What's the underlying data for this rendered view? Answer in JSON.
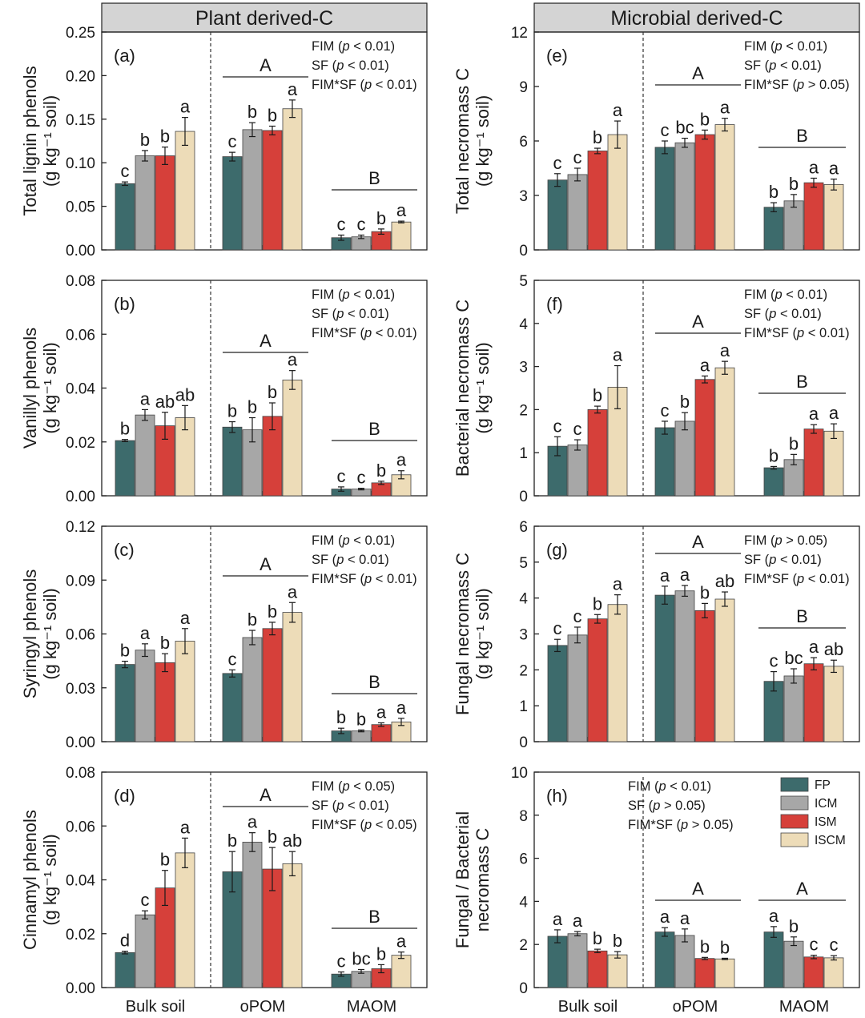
{
  "headers": {
    "left": "Plant derived-C",
    "right": "Microbial derived-C"
  },
  "legend": [
    {
      "name": "FP",
      "color": "#3d6b6c"
    },
    {
      "name": "ICM",
      "color": "#a7a7a7"
    },
    {
      "name": "ISM",
      "color": "#d6403a"
    },
    {
      "name": "ISCM",
      "color": "#eddcb8"
    }
  ],
  "chart_data": [
    {
      "id": "a",
      "type": "bar",
      "panel_label": "(a)",
      "ylabel": [
        "Total lignin phenols",
        "(g kg⁻¹ soil)"
      ],
      "ylim": [
        0,
        0.25
      ],
      "yticks": [
        "0.00",
        "0.05",
        "0.10",
        "0.15",
        "0.20",
        "0.25"
      ],
      "categories": [
        "Bulk soil",
        "oPOM",
        "MAOM"
      ],
      "series": [
        "FP",
        "ICM",
        "ISM",
        "ISCM"
      ],
      "values": [
        [
          0.076,
          0.108,
          0.108,
          0.136
        ],
        [
          0.107,
          0.138,
          0.137,
          0.162
        ],
        [
          0.014,
          0.015,
          0.021,
          0.032
        ]
      ],
      "errors": [
        [
          0.002,
          0.006,
          0.01,
          0.016
        ],
        [
          0.005,
          0.008,
          0.005,
          0.01
        ],
        [
          0.003,
          0.002,
          0.003,
          0.001
        ]
      ],
      "letters": [
        [
          "c",
          "b",
          "b",
          "a"
        ],
        [
          "c",
          "b",
          "b",
          "a"
        ],
        [
          "c",
          "c",
          "b",
          "a"
        ]
      ],
      "group_letters": [
        "",
        "A",
        "B"
      ],
      "stats": [
        [
          "FIM",
          " (",
          "p",
          " < 0.01)"
        ],
        [
          "SF",
          " (",
          "p",
          " < 0.01)"
        ],
        [
          "FIM*SF",
          " (",
          "p",
          " < 0.01)"
        ]
      ]
    },
    {
      "id": "b",
      "type": "bar",
      "panel_label": "(b)",
      "ylabel": [
        "Vanillyl phenols",
        "(g kg⁻¹ soil)"
      ],
      "ylim": [
        0,
        0.08
      ],
      "yticks": [
        "0.00",
        "0.02",
        "0.04",
        "0.06",
        "0.08"
      ],
      "categories": [
        "Bulk soil",
        "oPOM",
        "MAOM"
      ],
      "series": [
        "FP",
        "ICM",
        "ISM",
        "ISCM"
      ],
      "values": [
        [
          0.0205,
          0.03,
          0.026,
          0.029
        ],
        [
          0.0255,
          0.0245,
          0.0295,
          0.043
        ],
        [
          0.0025,
          0.0025,
          0.0048,
          0.0078
        ]
      ],
      "errors": [
        [
          0.0004,
          0.002,
          0.005,
          0.0045
        ],
        [
          0.002,
          0.0045,
          0.005,
          0.0035
        ],
        [
          0.0008,
          0.0003,
          0.0006,
          0.0015
        ]
      ],
      "letters": [
        [
          "b",
          "a",
          "ab",
          "ab"
        ],
        [
          "b",
          "b",
          "b",
          "a"
        ],
        [
          "c",
          "c",
          "b",
          "a"
        ]
      ],
      "group_letters": [
        "",
        "A",
        "B"
      ],
      "stats": [
        [
          "FIM",
          " (",
          "p",
          " < 0.01)"
        ],
        [
          "SF",
          " (",
          "p",
          " < 0.01)"
        ],
        [
          "FIM*SF",
          " (",
          "p",
          " < 0.01)"
        ]
      ]
    },
    {
      "id": "c",
      "type": "bar",
      "panel_label": "(c)",
      "ylabel": [
        "Syringyl phenols",
        "(g kg⁻¹ soil)"
      ],
      "ylim": [
        0,
        0.12
      ],
      "yticks": [
        "0.00",
        "0.03",
        "0.06",
        "0.09",
        "0.12"
      ],
      "categories": [
        "Bulk soil",
        "oPOM",
        "MAOM"
      ],
      "series": [
        "FP",
        "ICM",
        "ISM",
        "ISCM"
      ],
      "values": [
        [
          0.043,
          0.051,
          0.044,
          0.056
        ],
        [
          0.038,
          0.058,
          0.063,
          0.072
        ],
        [
          0.006,
          0.006,
          0.0095,
          0.011
        ]
      ],
      "errors": [
        [
          0.0018,
          0.0035,
          0.005,
          0.007
        ],
        [
          0.002,
          0.004,
          0.0035,
          0.0055
        ],
        [
          0.0015,
          0.0005,
          0.001,
          0.002
        ]
      ],
      "letters": [
        [
          "b",
          "a",
          "b",
          "a"
        ],
        [
          "c",
          "b",
          "b",
          "a"
        ],
        [
          "b",
          "b",
          "a",
          "a"
        ]
      ],
      "group_letters": [
        "",
        "A",
        "B"
      ],
      "stats": [
        [
          "FIM",
          " (",
          "p",
          " < 0.01)"
        ],
        [
          "SF",
          " (",
          "p",
          " < 0.01)"
        ],
        [
          "FIM*SF",
          " (",
          "p",
          " < 0.01)"
        ]
      ]
    },
    {
      "id": "d",
      "type": "bar",
      "panel_label": "(d)",
      "ylabel": [
        "Cinnamyl phenols",
        "(g kg⁻¹ soil)"
      ],
      "ylim": [
        0,
        0.08
      ],
      "yticks": [
        "0.00",
        "0.02",
        "0.04",
        "0.06",
        "0.08"
      ],
      "categories": [
        "Bulk soil",
        "oPOM",
        "MAOM"
      ],
      "series": [
        "FP",
        "ICM",
        "ISM",
        "ISCM"
      ],
      "values": [
        [
          0.013,
          0.027,
          0.037,
          0.05
        ],
        [
          0.043,
          0.054,
          0.044,
          0.046
        ],
        [
          0.005,
          0.006,
          0.007,
          0.012
        ]
      ],
      "errors": [
        [
          0.0005,
          0.0015,
          0.0065,
          0.0055
        ],
        [
          0.0075,
          0.0035,
          0.008,
          0.0045
        ],
        [
          0.0008,
          0.0007,
          0.0015,
          0.0012
        ]
      ],
      "letters": [
        [
          "d",
          "c",
          "b",
          "a"
        ],
        [
          "b",
          "a",
          "b",
          "ab"
        ],
        [
          "c",
          "bc",
          "b",
          "a"
        ]
      ],
      "group_letters": [
        "",
        "A",
        "B"
      ],
      "stats": [
        [
          "FIM",
          " (",
          "p",
          " < 0.05)"
        ],
        [
          "SF",
          " (",
          "p",
          " < 0.01)"
        ],
        [
          "FIM*SF",
          " (",
          "p",
          " < 0.05)"
        ]
      ]
    },
    {
      "id": "e",
      "type": "bar",
      "panel_label": "(e)",
      "ylabel": [
        "Total necromass C",
        "(g kg⁻¹ soil)"
      ],
      "ylim": [
        0,
        12
      ],
      "yticks": [
        "0",
        "3",
        "6",
        "9",
        "12"
      ],
      "categories": [
        "Bulk soil",
        "oPOM",
        "MAOM"
      ],
      "series": [
        "FP",
        "ICM",
        "ISM",
        "ISCM"
      ],
      "values": [
        [
          3.85,
          4.15,
          5.45,
          6.35
        ],
        [
          5.65,
          5.9,
          6.35,
          6.9
        ],
        [
          2.35,
          2.7,
          3.7,
          3.6
        ]
      ],
      "errors": [
        [
          0.35,
          0.35,
          0.15,
          0.75
        ],
        [
          0.35,
          0.25,
          0.25,
          0.35
        ],
        [
          0.25,
          0.35,
          0.25,
          0.3
        ]
      ],
      "letters": [
        [
          "c",
          "c",
          "b",
          "a"
        ],
        [
          "c",
          "bc",
          "b",
          "a"
        ],
        [
          "b",
          "b",
          "a",
          "a"
        ]
      ],
      "group_letters": [
        "",
        "A",
        "B"
      ],
      "stats": [
        [
          "FIM",
          " (",
          "p",
          " < 0.01)"
        ],
        [
          "SF",
          " (",
          "p",
          " < 0.01)"
        ],
        [
          "FIM*SF",
          " (",
          "p",
          " > 0.05)"
        ]
      ]
    },
    {
      "id": "f",
      "type": "bar",
      "panel_label": "(f)",
      "ylabel": [
        "Bacterial necromass C",
        "(g kg⁻¹ soil)"
      ],
      "ylim": [
        0,
        5
      ],
      "yticks": [
        "0",
        "1",
        "2",
        "3",
        "4",
        "5"
      ],
      "categories": [
        "Bulk soil",
        "oPOM",
        "MAOM"
      ],
      "series": [
        "FP",
        "ICM",
        "ISM",
        "ISCM"
      ],
      "values": [
        [
          1.15,
          1.18,
          2.0,
          2.52
        ],
        [
          1.58,
          1.73,
          2.7,
          2.97
        ],
        [
          0.65,
          0.84,
          1.55,
          1.5
        ]
      ],
      "errors": [
        [
          0.22,
          0.12,
          0.08,
          0.5
        ],
        [
          0.15,
          0.2,
          0.08,
          0.15
        ],
        [
          0.03,
          0.12,
          0.1,
          0.17
        ]
      ],
      "letters": [
        [
          "c",
          "c",
          "b",
          "a"
        ],
        [
          "c",
          "b",
          "a",
          "a"
        ],
        [
          "b",
          "b",
          "a",
          "a"
        ]
      ],
      "group_letters": [
        "",
        "A",
        "B"
      ],
      "stats": [
        [
          "FIM",
          " (",
          "p",
          " < 0.01)"
        ],
        [
          "SF",
          " (",
          "p",
          " < 0.01)"
        ],
        [
          "FIM*SF",
          " (",
          "p",
          " < 0.01)"
        ]
      ]
    },
    {
      "id": "g",
      "type": "bar",
      "panel_label": "(g)",
      "ylabel": [
        "Fungal necromass C",
        "(g kg⁻¹ soil)"
      ],
      "ylim": [
        0,
        6
      ],
      "yticks": [
        "0",
        "1",
        "2",
        "3",
        "4",
        "5",
        "6"
      ],
      "categories": [
        "Bulk soil",
        "oPOM",
        "MAOM"
      ],
      "series": [
        "FP",
        "ICM",
        "ISM",
        "ISCM"
      ],
      "values": [
        [
          2.68,
          2.97,
          3.42,
          3.82
        ],
        [
          4.08,
          4.2,
          3.65,
          3.97
        ],
        [
          1.68,
          1.83,
          2.17,
          2.1
        ]
      ],
      "errors": [
        [
          0.17,
          0.22,
          0.12,
          0.27
        ],
        [
          0.25,
          0.15,
          0.2,
          0.2
        ],
        [
          0.27,
          0.2,
          0.17,
          0.17
        ]
      ],
      "letters": [
        [
          "c",
          "c",
          "b",
          "a"
        ],
        [
          "a",
          "a",
          "b",
          "ab"
        ],
        [
          "c",
          "bc",
          "a",
          "ab"
        ]
      ],
      "group_letters": [
        "",
        "A",
        "B"
      ],
      "stats": [
        [
          "FIM",
          " (",
          "p",
          " > 0.05)"
        ],
        [
          "SF",
          " (",
          "p",
          " < 0.01)"
        ],
        [
          "FIM*SF",
          " (",
          "p",
          " < 0.01)"
        ]
      ]
    },
    {
      "id": "h",
      "type": "bar",
      "panel_label": "(h)",
      "ylabel": [
        "Fungal / Bacterial",
        "necromass C"
      ],
      "ylim": [
        0,
        10
      ],
      "yticks": [
        "0",
        "2",
        "4",
        "6",
        "8",
        "10"
      ],
      "categories": [
        "Bulk soil",
        "oPOM",
        "MAOM"
      ],
      "series": [
        "FP",
        "ICM",
        "ISM",
        "ISCM"
      ],
      "values": [
        [
          2.38,
          2.5,
          1.7,
          1.52
        ],
        [
          2.58,
          2.42,
          1.35,
          1.33
        ],
        [
          2.58,
          2.15,
          1.42,
          1.38
        ]
      ],
      "errors": [
        [
          0.3,
          0.1,
          0.08,
          0.15
        ],
        [
          0.2,
          0.3,
          0.05,
          0.03
        ],
        [
          0.25,
          0.2,
          0.08,
          0.1
        ]
      ],
      "letters": [
        [
          "a",
          "a",
          "b",
          "b"
        ],
        [
          "a",
          "a",
          "b",
          "b"
        ],
        [
          "a",
          "b",
          "c",
          "c"
        ]
      ],
      "group_letters": [
        "",
        "A",
        "A"
      ],
      "stats": [
        [
          "FIM",
          " (",
          "p",
          " < 0.01)"
        ],
        [
          "SF",
          " (",
          "p",
          " > 0.05)"
        ],
        [
          "FIM*SF",
          " (",
          "p",
          " > 0.05)"
        ]
      ]
    }
  ]
}
